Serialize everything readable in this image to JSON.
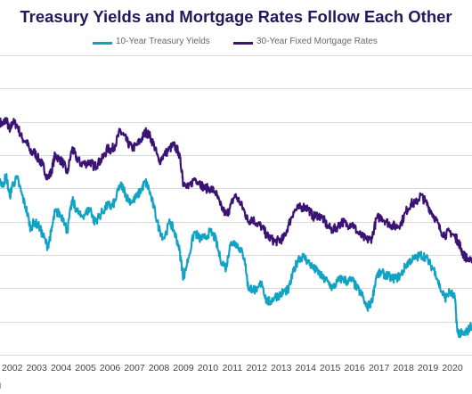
{
  "chart_data": {
    "type": "line",
    "title": "Treasury Yields and Mortgage Rates Follow Each Other",
    "legend_position": "top-center",
    "grid": true,
    "x_ticks": [
      "2002",
      "2003",
      "2004",
      "2005",
      "2006",
      "2007",
      "2008",
      "2009",
      "2010",
      "2011",
      "2012",
      "2013",
      "2014",
      "2015",
      "2016",
      "2017",
      "2018",
      "2019",
      "2020"
    ],
    "xlim": [
      2001.5,
      2020.8
    ],
    "ylim": [
      0,
      9
    ],
    "series": [
      {
        "name": "10-Year Treasury Yields",
        "color": "#12a3c4",
        "x": [
          2001.5,
          2001.6,
          2001.75,
          2001.9,
          2002.0,
          2002.2,
          2002.4,
          2002.6,
          2002.75,
          2002.9,
          2003.1,
          2003.25,
          2003.45,
          2003.6,
          2003.75,
          2003.9,
          2004.1,
          2004.25,
          2004.45,
          2004.6,
          2004.8,
          2005.0,
          2005.2,
          2005.35,
          2005.5,
          2005.7,
          2005.9,
          2006.05,
          2006.2,
          2006.4,
          2006.55,
          2006.7,
          2006.9,
          2007.1,
          2007.3,
          2007.45,
          2007.6,
          2007.8,
          2008.0,
          2008.2,
          2008.45,
          2008.6,
          2008.8,
          2008.95,
          2009.0,
          2009.2,
          2009.45,
          2009.65,
          2009.85,
          2010.1,
          2010.3,
          2010.5,
          2010.75,
          2010.9,
          2011.1,
          2011.3,
          2011.5,
          2011.65,
          2011.8,
          2012.0,
          2012.2,
          2012.4,
          2012.55,
          2012.75,
          2012.95,
          2013.1,
          2013.3,
          2013.5,
          2013.7,
          2013.9,
          2014.1,
          2014.3,
          2014.5,
          2014.7,
          2014.9,
          2015.1,
          2015.3,
          2015.5,
          2015.7,
          2015.9,
          2016.1,
          2016.3,
          2016.5,
          2016.7,
          2016.9,
          2017.1,
          2017.3,
          2017.5,
          2017.7,
          2017.9,
          2018.1,
          2018.3,
          2018.5,
          2018.7,
          2018.9,
          2019.1,
          2019.3,
          2019.5,
          2019.7,
          2019.9,
          2020.1,
          2020.2,
          2020.3,
          2020.45,
          2020.6,
          2020.8
        ],
        "values": [
          5.3,
          5.05,
          5.4,
          4.75,
          5.1,
          5.3,
          4.8,
          4.3,
          3.8,
          4.0,
          3.85,
          3.6,
          3.25,
          3.7,
          4.3,
          4.25,
          4.1,
          3.7,
          4.65,
          4.4,
          4.15,
          4.25,
          4.4,
          4.0,
          4.1,
          4.3,
          4.5,
          4.45,
          4.6,
          5.1,
          5.0,
          4.7,
          4.6,
          4.75,
          5.0,
          5.2,
          4.95,
          4.4,
          3.8,
          3.5,
          4.0,
          3.75,
          3.3,
          2.6,
          2.3,
          2.9,
          3.7,
          3.5,
          3.5,
          3.7,
          3.5,
          2.9,
          2.6,
          3.3,
          3.4,
          3.2,
          2.9,
          2.0,
          2.0,
          1.9,
          2.2,
          1.6,
          1.6,
          1.75,
          1.8,
          1.9,
          1.95,
          2.5,
          2.9,
          2.95,
          2.8,
          2.6,
          2.5,
          2.3,
          2.2,
          2.0,
          2.2,
          2.3,
          2.2,
          2.25,
          2.0,
          1.8,
          1.4,
          1.6,
          2.4,
          2.45,
          2.4,
          2.3,
          2.3,
          2.4,
          2.7,
          2.85,
          2.9,
          3.0,
          2.95,
          2.7,
          2.5,
          2.0,
          1.7,
          1.9,
          1.7,
          0.7,
          0.65,
          0.6,
          0.7,
          0.9
        ]
      },
      {
        "name": "30-Year Fixed Mortgage Rates",
        "color": "#3b1375",
        "x": [
          2001.5,
          2001.6,
          2001.75,
          2001.9,
          2002.0,
          2002.2,
          2002.4,
          2002.6,
          2002.75,
          2002.9,
          2003.1,
          2003.25,
          2003.45,
          2003.6,
          2003.75,
          2003.9,
          2004.1,
          2004.25,
          2004.45,
          2004.6,
          2004.8,
          2005.0,
          2005.2,
          2005.35,
          2005.5,
          2005.7,
          2005.9,
          2006.05,
          2006.2,
          2006.4,
          2006.55,
          2006.7,
          2006.9,
          2007.1,
          2007.3,
          2007.45,
          2007.6,
          2007.8,
          2008.0,
          2008.2,
          2008.45,
          2008.6,
          2008.8,
          2008.95,
          2009.0,
          2009.2,
          2009.45,
          2009.65,
          2009.85,
          2010.1,
          2010.3,
          2010.5,
          2010.75,
          2010.9,
          2011.1,
          2011.3,
          2011.5,
          2011.65,
          2011.8,
          2012.0,
          2012.2,
          2012.4,
          2012.55,
          2012.75,
          2012.95,
          2013.1,
          2013.3,
          2013.5,
          2013.7,
          2013.9,
          2014.1,
          2014.3,
          2014.5,
          2014.7,
          2014.9,
          2015.1,
          2015.3,
          2015.5,
          2015.7,
          2015.9,
          2016.1,
          2016.3,
          2016.5,
          2016.7,
          2016.9,
          2017.1,
          2017.3,
          2017.5,
          2017.7,
          2017.9,
          2018.1,
          2018.3,
          2018.5,
          2018.7,
          2018.9,
          2019.1,
          2019.3,
          2019.5,
          2019.7,
          2019.9,
          2020.1,
          2020.2,
          2020.3,
          2020.45,
          2020.6,
          2020.8
        ],
        "values": [
          7.0,
          6.9,
          7.1,
          6.7,
          7.0,
          6.9,
          6.5,
          6.4,
          6.05,
          6.1,
          5.85,
          5.7,
          5.3,
          5.5,
          6.0,
          5.9,
          5.75,
          5.45,
          6.2,
          5.95,
          5.75,
          5.75,
          5.8,
          5.65,
          5.75,
          5.9,
          6.2,
          6.15,
          6.3,
          6.7,
          6.6,
          6.4,
          6.2,
          6.3,
          6.5,
          6.7,
          6.6,
          6.3,
          5.8,
          6.0,
          6.2,
          6.3,
          6.1,
          5.5,
          5.1,
          5.0,
          5.3,
          5.2,
          5.0,
          5.0,
          4.9,
          4.5,
          4.2,
          4.4,
          4.8,
          4.6,
          4.3,
          4.0,
          4.1,
          3.95,
          3.85,
          3.6,
          3.5,
          3.4,
          3.45,
          3.5,
          3.9,
          4.3,
          4.4,
          4.45,
          4.4,
          4.15,
          4.2,
          4.1,
          3.85,
          3.75,
          3.85,
          4.0,
          3.9,
          3.95,
          3.7,
          3.55,
          3.45,
          3.5,
          4.1,
          4.15,
          4.0,
          3.9,
          3.85,
          3.95,
          4.3,
          4.55,
          4.55,
          4.8,
          4.6,
          4.35,
          4.1,
          3.75,
          3.6,
          3.7,
          3.55,
          3.45,
          3.3,
          3.0,
          2.9,
          2.75
        ]
      }
    ],
    "source_label": "erg"
  }
}
